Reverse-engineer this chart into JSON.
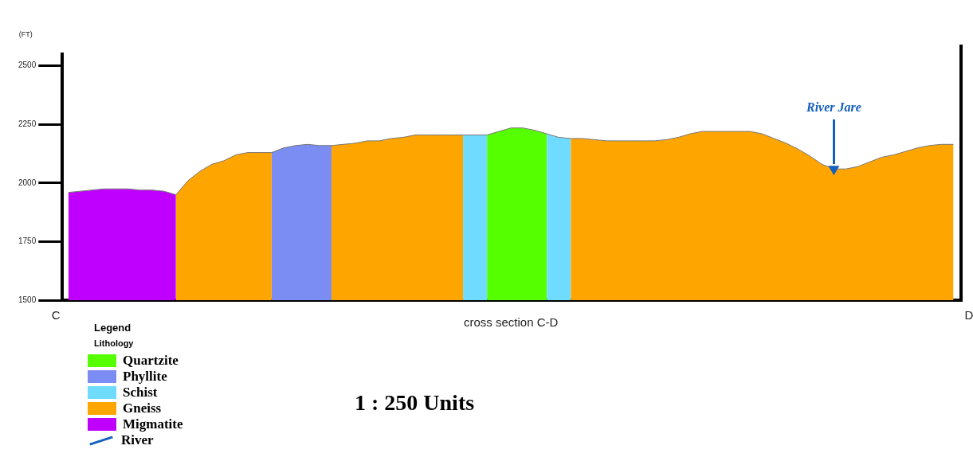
{
  "chart_data": {
    "type": "area",
    "xlabel": "cross section C-D",
    "ylabel": "(FT)",
    "legend_title": "Lithology",
    "legend": "bottom left",
    "grid": false,
    "tick_labels": "y",
    "categories": [
      null,
      null,
      null,
      null,
      null,
      null,
      null,
      null,
      null,
      null,
      null,
      null,
      null,
      null,
      null,
      null,
      null,
      null,
      null,
      null,
      null,
      null,
      null,
      null,
      null,
      null,
      null,
      null,
      null,
      null,
      null,
      null,
      null,
      null,
      null,
      null,
      null,
      null,
      null,
      null,
      null,
      null,
      null,
      null,
      null,
      null,
      null,
      null,
      null,
      null,
      null,
      null,
      null,
      null,
      null,
      null,
      null,
      null,
      null,
      null,
      null,
      null,
      null,
      null,
      null,
      null,
      null,
      null,
      null,
      null,
      null,
      null,
      null,
      null,
      null
    ],
    "ylim": [
      1500,
      2550
    ],
    "yticks": [
      1500,
      1750,
      2000,
      2250,
      2500
    ],
    "series": [
      {
        "name": "Quartzite",
        "color": "#55ff00",
        "values": [
          null,
          null,
          null,
          null,
          null,
          null,
          null,
          null,
          null,
          null,
          null,
          null,
          null,
          null,
          null,
          null,
          null,
          null,
          null,
          null,
          null,
          null,
          null,
          null,
          null,
          null,
          null,
          null,
          null,
          null,
          null,
          null,
          null,
          null,
          null,
          2205,
          2220,
          2235,
          2235,
          2225,
          2210,
          null,
          null,
          null,
          null,
          null,
          null,
          null,
          null,
          null,
          null,
          null,
          null,
          null,
          null,
          null,
          null,
          null,
          null,
          null,
          null,
          null,
          null,
          null,
          null,
          null,
          null,
          null,
          null,
          null,
          null,
          null,
          null,
          null,
          null
        ]
      },
      {
        "name": "Phyllite",
        "color": "#7b8cf2",
        "values": [
          null,
          null,
          null,
          null,
          null,
          null,
          null,
          null,
          null,
          null,
          null,
          null,
          null,
          null,
          null,
          null,
          null,
          2130,
          2150,
          2160,
          2165,
          2160,
          2160,
          null,
          null,
          null,
          null,
          null,
          null,
          null,
          null,
          null,
          null,
          null,
          null,
          null,
          null,
          null,
          null,
          null,
          null,
          null,
          null,
          null,
          null,
          null,
          null,
          null,
          null,
          null,
          null,
          null,
          null,
          null,
          null,
          null,
          null,
          null,
          null,
          null,
          null,
          null,
          null,
          null,
          null,
          null,
          null,
          null,
          null,
          null,
          null,
          null,
          null,
          null,
          null
        ]
      },
      {
        "name": "Schist",
        "color": "#6fdcff",
        "values": [
          null,
          null,
          null,
          null,
          null,
          null,
          null,
          null,
          null,
          null,
          null,
          null,
          null,
          null,
          null,
          null,
          null,
          null,
          null,
          null,
          null,
          null,
          null,
          null,
          null,
          null,
          null,
          null,
          null,
          null,
          null,
          null,
          null,
          2205,
          2205,
          2205,
          null,
          null,
          null,
          null,
          2210,
          2195,
          2190,
          null,
          null,
          null,
          null,
          null,
          null,
          null,
          null,
          null,
          null,
          null,
          null,
          null,
          null,
          null,
          null,
          null,
          null,
          null,
          null,
          null,
          null,
          null,
          null,
          null,
          null,
          null,
          null,
          null,
          null,
          null,
          null
        ]
      },
      {
        "name": "Gneiss",
        "color": "#ffa500",
        "values": [
          null,
          null,
          null,
          null,
          null,
          null,
          null,
          null,
          null,
          1950,
          2010,
          2050,
          2080,
          2095,
          2120,
          2130,
          2130,
          2130,
          null,
          null,
          null,
          null,
          2160,
          2165,
          2170,
          2180,
          2180,
          2190,
          2195,
          2205,
          2205,
          2205,
          2205,
          2205,
          null,
          null,
          null,
          null,
          null,
          null,
          null,
          null,
          2190,
          2190,
          2185,
          2180,
          2180,
          2180,
          2180,
          2180,
          2185,
          2195,
          2210,
          2220,
          2220,
          2220,
          2220,
          2220,
          2210,
          2190,
          2170,
          2145,
          2115,
          2080,
          2060,
          2060,
          2070,
          2090,
          2110,
          2120,
          2135,
          2150,
          2160,
          2165,
          2165
        ]
      },
      {
        "name": "Migmatite",
        "color": "#c000ff",
        "values": [
          1960,
          1965,
          1970,
          1975,
          1975,
          1975,
          1970,
          1970,
          1965,
          1950,
          null,
          null,
          null,
          null,
          null,
          null,
          null,
          null,
          null,
          null,
          null,
          null,
          null,
          null,
          null,
          null,
          null,
          null,
          null,
          null,
          null,
          null,
          null,
          null,
          null,
          null,
          null,
          null,
          null,
          null,
          null,
          null,
          null,
          null,
          null,
          null,
          null,
          null,
          null,
          null,
          null,
          null,
          null,
          null,
          null,
          null,
          null,
          null,
          null,
          null,
          null,
          null,
          null,
          null,
          null,
          null,
          null,
          null,
          null,
          null,
          null,
          null,
          null,
          null,
          null
        ]
      },
      {
        "name": "River",
        "type": "scatter",
        "marker": "triangle",
        "color": "#1560bd",
        "values": [
          null,
          null,
          null,
          null,
          null,
          null,
          null,
          null,
          null,
          null,
          null,
          null,
          null,
          null,
          null,
          null,
          null,
          null,
          null,
          null,
          null,
          null,
          null,
          null,
          null,
          null,
          null,
          null,
          null,
          null,
          null,
          null,
          null,
          null,
          null,
          null,
          null,
          null,
          null,
          null,
          null,
          null,
          null,
          null,
          null,
          null,
          null,
          null,
          null,
          null,
          null,
          null,
          null,
          null,
          null,
          null,
          null,
          null,
          null,
          null,
          null,
          null,
          null,
          null,
          2060,
          null,
          null,
          null,
          null,
          null,
          null,
          null,
          null,
          null,
          null
        ]
      }
    ],
    "annotations": [
      "C",
      "D",
      "River Jare",
      "1 : 250 Units",
      "Legend"
    ]
  }
}
